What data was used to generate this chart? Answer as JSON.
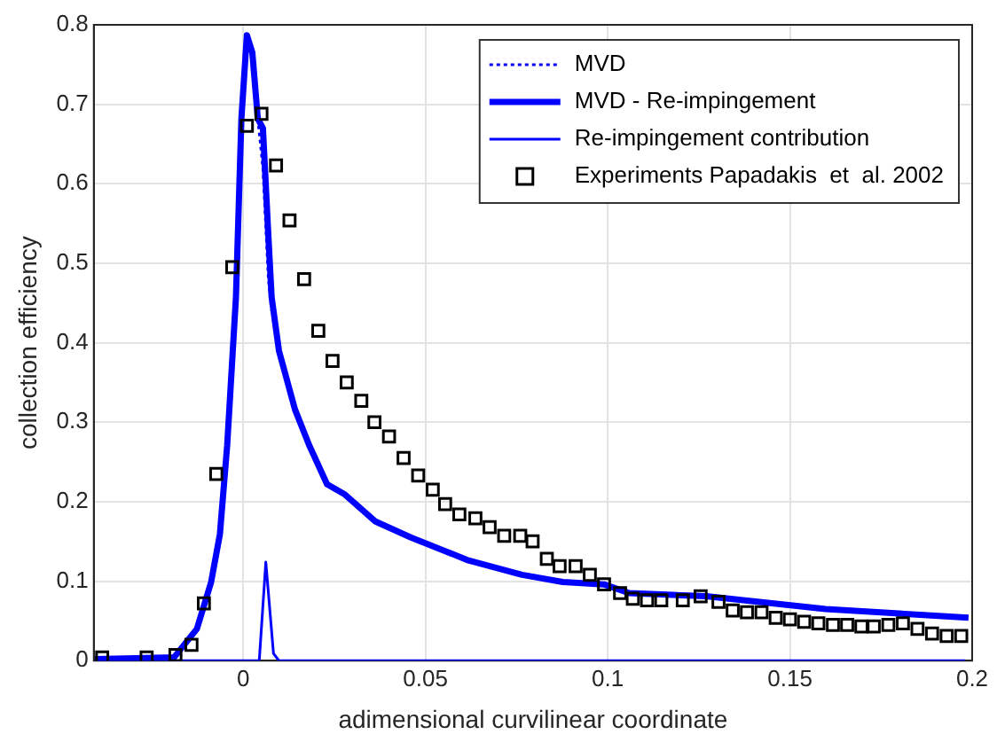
{
  "chart_data": {
    "type": "line",
    "xlabel": "adimensional curvilinear coordinate",
    "ylabel": "collection efficiency",
    "xlim": [
      -0.041,
      0.2
    ],
    "xticks": [
      0,
      0.05,
      0.1,
      0.15,
      0.2
    ],
    "ylim": [
      0,
      0.8
    ],
    "yticks": [
      0,
      0.1,
      0.2,
      0.3,
      0.4,
      0.5,
      0.6,
      0.7,
      0.8
    ],
    "grid": true,
    "legend": "top right",
    "series": [
      {
        "name": "MVD",
        "color": "#0000ff",
        "line_style": "dotted",
        "marker": "none",
        "x": [
          0.004,
          0.0054,
          0.0069,
          0.0078
        ],
        "values": [
          0.682,
          0.62,
          0.48,
          0.44
        ]
      },
      {
        "name": "MVD - Re-impingement",
        "color": "#0000ff",
        "line_style": "solid",
        "marker": "none",
        "x": [
          -0.0407,
          -0.019,
          -0.0127,
          -0.0088,
          -0.0064,
          -0.0044,
          -0.002,
          -0.0005,
          0.001,
          0.0025,
          0.004,
          0.0054,
          0.0069,
          0.0078,
          0.0098,
          0.0142,
          0.0181,
          0.023,
          0.0279,
          0.0363,
          0.046,
          0.0559,
          0.0618,
          0.0765,
          0.0877,
          0.099,
          0.1059,
          0.127,
          0.1598,
          0.199
        ],
        "values": [
          0.002,
          0.004,
          0.04,
          0.099,
          0.159,
          0.271,
          0.457,
          0.682,
          0.787,
          0.765,
          0.682,
          0.67,
          0.534,
          0.457,
          0.39,
          0.316,
          0.271,
          0.222,
          0.209,
          0.175,
          0.155,
          0.137,
          0.126,
          0.108,
          0.099,
          0.096,
          0.085,
          0.081,
          0.065,
          0.054
        ]
      },
      {
        "name": "Re-impingement contribution",
        "color": "#0000ff",
        "line_style": "solid",
        "marker": "none",
        "x": [
          -0.04,
          0.0044,
          0.0062,
          0.0083,
          0.0098,
          0.198
        ],
        "values": [
          0,
          0,
          0.124,
          0.009,
          0,
          0
        ]
      },
      {
        "name": "Experiments Papadakis  et  al. 2002",
        "type": "scatter",
        "color": "#000000",
        "marker": "square",
        "x": [
          -0.0387,
          -0.0265,
          -0.0186,
          -0.0142,
          -0.0108,
          -0.0074,
          -0.003,
          0.001,
          0.005,
          0.009,
          0.0127,
          0.0167,
          0.0206,
          0.0245,
          0.0284,
          0.0324,
          0.036,
          0.04,
          0.044,
          0.048,
          0.052,
          0.0554,
          0.0593,
          0.0637,
          0.0676,
          0.0716,
          0.076,
          0.0794,
          0.0833,
          0.0868,
          0.0912,
          0.0951,
          0.099,
          0.1034,
          0.1069,
          0.1108,
          0.1147,
          0.1206,
          0.1255,
          0.1304,
          0.1343,
          0.1382,
          0.1422,
          0.1461,
          0.15,
          0.1539,
          0.1578,
          0.1618,
          0.1657,
          0.1696,
          0.173,
          0.177,
          0.181,
          0.185,
          0.189,
          0.193,
          0.197
        ],
        "values": [
          0.004,
          0.004,
          0.007,
          0.02,
          0.072,
          0.235,
          0.495,
          0.673,
          0.688,
          0.623,
          0.554,
          0.48,
          0.415,
          0.377,
          0.35,
          0.327,
          0.3,
          0.282,
          0.255,
          0.233,
          0.215,
          0.197,
          0.184,
          0.179,
          0.168,
          0.157,
          0.157,
          0.15,
          0.128,
          0.119,
          0.119,
          0.108,
          0.096,
          0.085,
          0.078,
          0.076,
          0.076,
          0.076,
          0.081,
          0.074,
          0.063,
          0.061,
          0.061,
          0.054,
          0.052,
          0.049,
          0.047,
          0.045,
          0.045,
          0.043,
          0.043,
          0.045,
          0.047,
          0.04,
          0.034,
          0.031,
          0.031
        ]
      }
    ]
  }
}
